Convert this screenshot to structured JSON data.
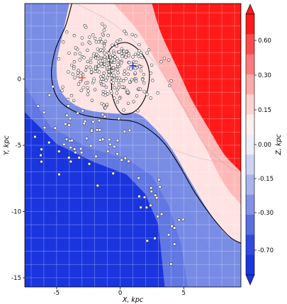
{
  "chart_data": {
    "type": "heatmap",
    "title": "",
    "xlabel": "X, kpc",
    "ylabel": "Y, kpc",
    "xlim": [
      -7.5,
      9.5
    ],
    "ylim": [
      -15.7,
      5.7
    ],
    "xticks": [
      -5,
      0,
      5
    ],
    "yticks": [
      0,
      -5,
      -10,
      -15
    ],
    "grid": true,
    "colorbar": {
      "label": "Z, kpc",
      "position": "right",
      "extend": "both",
      "ticks": [
        "0.60",
        "0.30",
        "0.15",
        "0.05",
        "0.00",
        "-0.05",
        "-0.15",
        "-0.30",
        "-0.70"
      ],
      "colors": [
        "#ff1a1a",
        "#ff4a4a",
        "#ff7a7a",
        "#ffa8a8",
        "#ffd2d2",
        "#ffefef",
        "#eceef9",
        "#cdd3f3",
        "#a9b3ec",
        "#8391e5",
        "#5b6ee0",
        "#3149de",
        "#1a35de"
      ]
    },
    "markers": [
      {
        "name": "Sun",
        "x": -3.0,
        "y": 0.1,
        "color": "#e05a5a",
        "symbol": "+"
      },
      {
        "name": "center",
        "x": 1.0,
        "y": 1.0,
        "color": "#2233cc",
        "symbol": "+"
      }
    ],
    "points_description": "open circles: objects concentrated around (-1, 1) with a tail to (2, -10)"
  }
}
